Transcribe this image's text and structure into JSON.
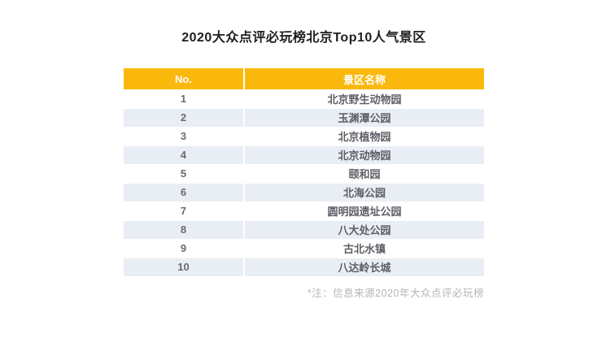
{
  "title": "2020大众点评必玩榜北京Top10人气景区",
  "table": {
    "headers": [
      "No.",
      "景区名称"
    ],
    "rows": [
      {
        "no": "1",
        "name": "北京野生动物园"
      },
      {
        "no": "2",
        "name": "玉渊潭公园"
      },
      {
        "no": "3",
        "name": "北京植物园"
      },
      {
        "no": "4",
        "name": "北京动物园"
      },
      {
        "no": "5",
        "name": "颐和园"
      },
      {
        "no": "6",
        "name": "北海公园"
      },
      {
        "no": "7",
        "name": "圆明园遗址公园"
      },
      {
        "no": "8",
        "name": "八大处公园"
      },
      {
        "no": "9",
        "name": "古北水镇"
      },
      {
        "no": "10",
        "name": "八达岭长城"
      }
    ]
  },
  "note": "*注：信息来源2020年大众点评必玩榜",
  "colors": {
    "header_bg": "#FBB80C",
    "header_text": "#FFFFFF",
    "row_alt_bg": "#E9EDF4",
    "row_text": "#5D5F66",
    "note_text": "#B5B5B5",
    "title_text": "#1F1F1F"
  },
  "chart_data": {
    "type": "table",
    "title": "2020大众点评必玩榜北京Top10人气景区",
    "columns": [
      "No.",
      "景区名称"
    ],
    "rows": [
      [
        1,
        "北京野生动物园"
      ],
      [
        2,
        "玉渊潭公园"
      ],
      [
        3,
        "北京植物园"
      ],
      [
        4,
        "北京动物园"
      ],
      [
        5,
        "颐和园"
      ],
      [
        6,
        "北海公园"
      ],
      [
        7,
        "圆明园遗址公园"
      ],
      [
        8,
        "八大处公园"
      ],
      [
        9,
        "古北水镇"
      ],
      [
        10,
        "八达岭长城"
      ]
    ],
    "footnote": "*注：信息来源2020年大众点评必玩榜",
    "layout_hints": {
      "header_style": "yellow background, white bold text",
      "zebra_striping": "even rows light blue-gray #E9EDF4",
      "footnote_position": "bottom-right, gray"
    }
  }
}
